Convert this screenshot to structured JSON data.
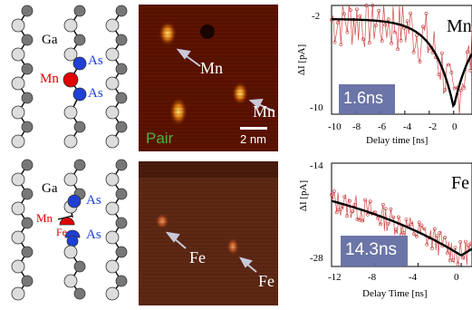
{
  "top": {
    "crystal": {
      "ga": "Ga",
      "as1": "As",
      "as2": "As",
      "dopant": "Mn"
    },
    "stm": {
      "label1": "Mn",
      "label2": "Mn",
      "scalebar": "2 nm",
      "pair": "Pair"
    },
    "plot": {
      "ylabel": "ΔI [pA]",
      "xlabel": "Delay time [ns]",
      "yticks": [
        "-2",
        "-10"
      ],
      "xticks": [
        "-10",
        "-8",
        "-6",
        "-4",
        "-2",
        "0"
      ],
      "element": "Mn",
      "badge": "1.6ns"
    }
  },
  "bottom": {
    "crystal": {
      "ga": "Ga",
      "as1": "As",
      "as2": "As",
      "dopant_mn": "Mn",
      "dopant_fe": "Fe"
    },
    "stm": {
      "label1": "Fe",
      "label2": "Fe"
    },
    "plot": {
      "ylabel": "ΔI [pA]",
      "xlabel": "Delay Time [ns]",
      "yticks": [
        "-14",
        "-28"
      ],
      "xticks": [
        "-12",
        "-8",
        "-4",
        "0"
      ],
      "element": "Fe",
      "badge": "14.3ns"
    }
  },
  "colors": {
    "ga": "#d9d9d9",
    "as": "#1f3fd6",
    "mn": "#e00000",
    "data": "#d24a4a",
    "badge_bg": "#5f6aa0"
  },
  "chart_data": [
    {
      "type": "scatter",
      "title": "",
      "xlabel": "Delay time [ns]",
      "ylabel": "ΔI [pA]",
      "xlim": [
        -10,
        1.5
      ],
      "ylim": [
        -10,
        -2
      ],
      "annotation": "1.6ns",
      "fit": {
        "model": "exponential",
        "baseline": -3.0,
        "amplitude": -6.5,
        "x0": 0,
        "tau": 1.6
      }
    },
    {
      "type": "scatter",
      "title": "",
      "xlabel": "Delay Time [ns]",
      "ylabel": "ΔI [pA]",
      "xlim": [
        -12,
        1
      ],
      "ylim": [
        -28,
        -14
      ],
      "annotation": "14.3ns",
      "fit": {
        "model": "exponential",
        "baseline": -13.5,
        "amplitude": -13.0,
        "x0": 0,
        "tau": 14.3
      }
    }
  ]
}
